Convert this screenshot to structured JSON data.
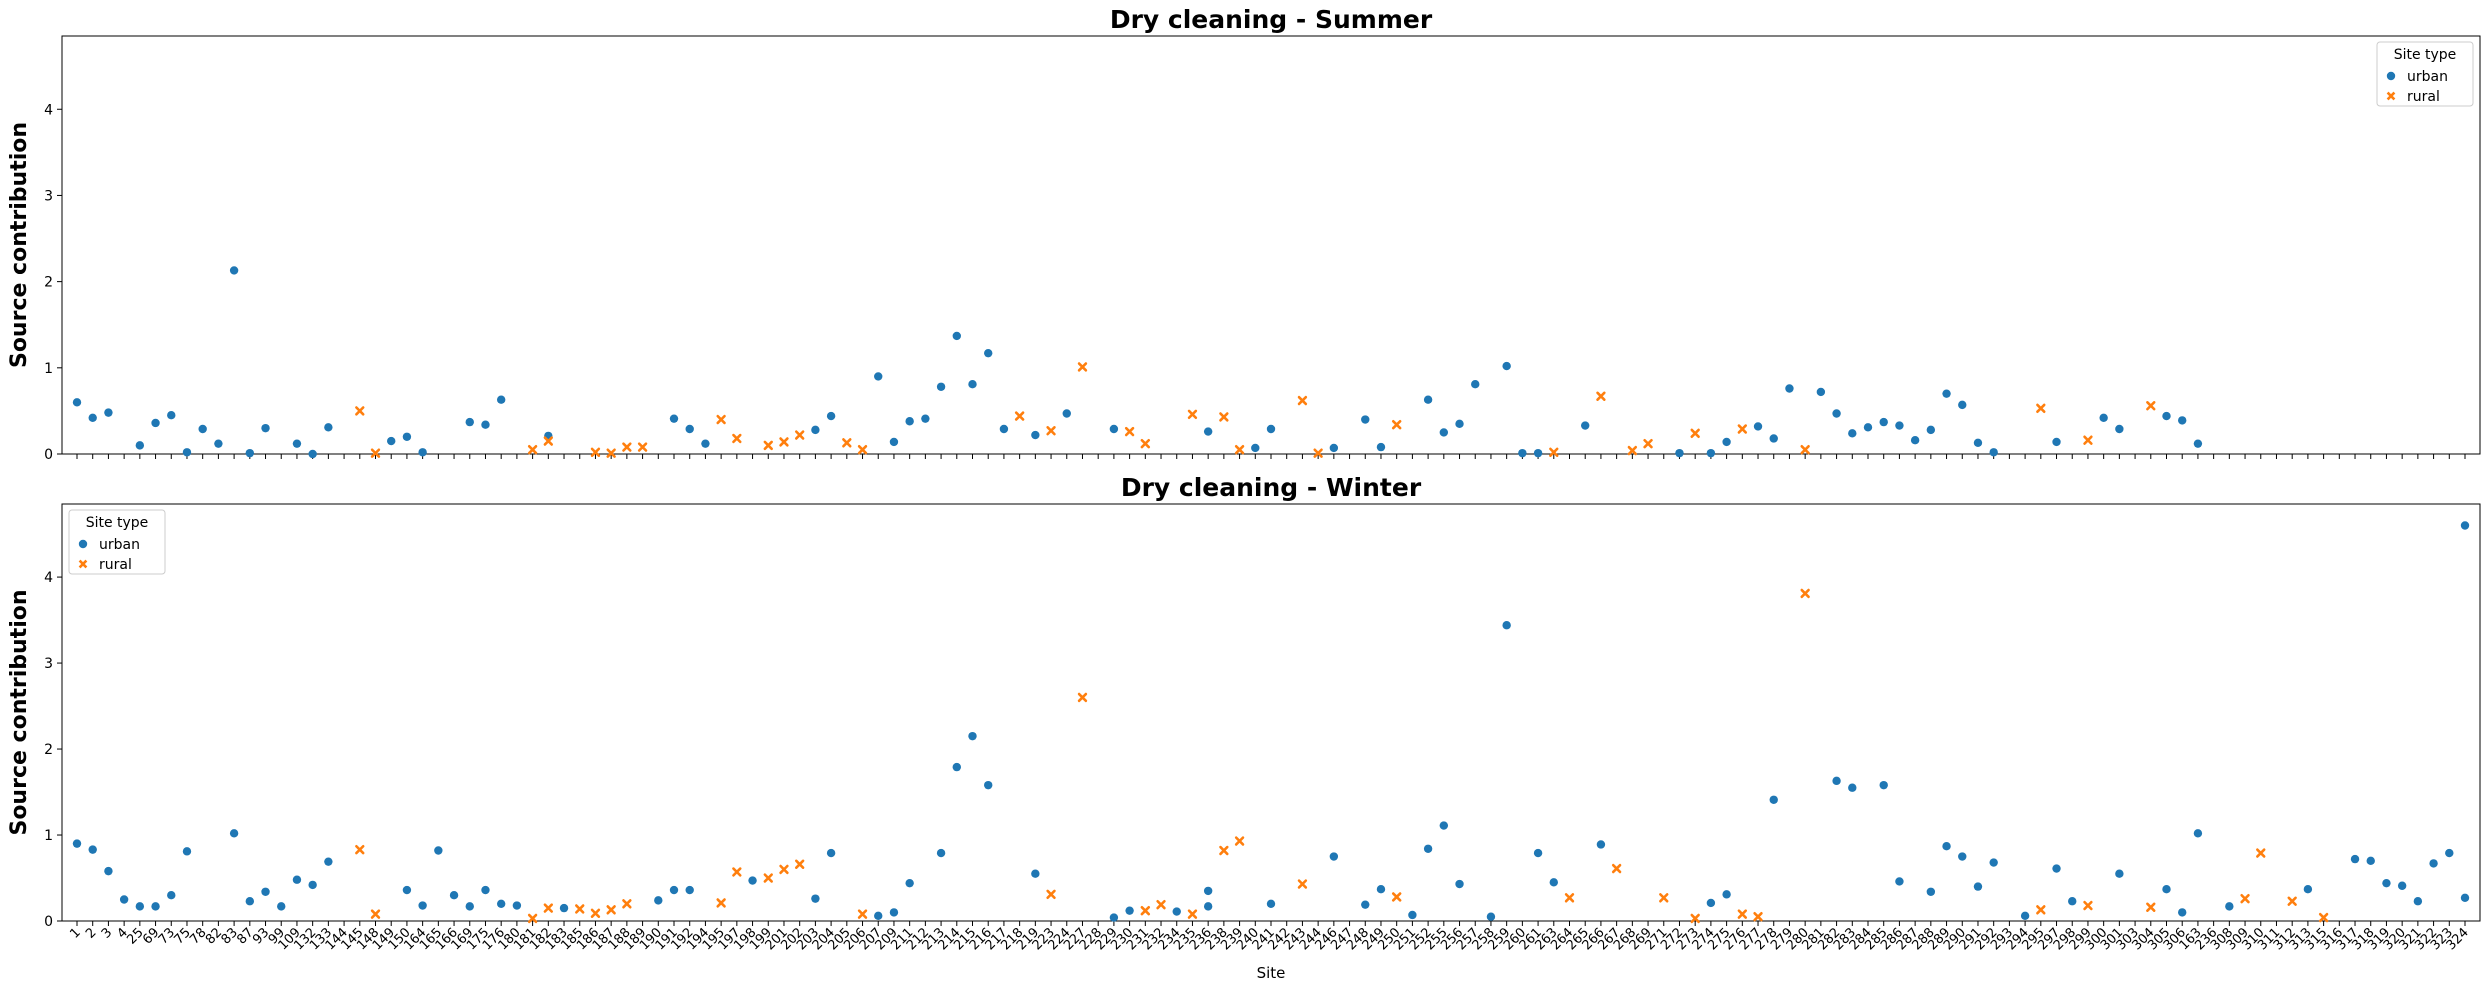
{
  "chart_data": [
    {
      "type": "scatter",
      "title": "Dry cleaning - Summer",
      "xlabel": "",
      "ylabel": "Source contribution",
      "ylim": [
        0,
        4.85
      ],
      "yticks": [
        0,
        1,
        2,
        3,
        4
      ],
      "legend": {
        "title": "Site type",
        "placement": "top-right"
      },
      "grid": false,
      "series": [
        {
          "name": "urban",
          "color": "#1f77b4",
          "marker": "circle",
          "points": [
            [
              "1",
              0.6
            ],
            [
              "2",
              0.42
            ],
            [
              "3",
              0.48
            ],
            [
              "25",
              0.1
            ],
            [
              "69",
              0.36
            ],
            [
              "73",
              0.45
            ],
            [
              "75",
              0.02
            ],
            [
              "78",
              0.29
            ],
            [
              "82",
              0.12
            ],
            [
              "83",
              2.13
            ],
            [
              "87",
              0.01
            ],
            [
              "93",
              0.3
            ],
            [
              "109",
              0.12
            ],
            [
              "132",
              0.0
            ],
            [
              "133",
              0.31
            ],
            [
              "149",
              0.15
            ],
            [
              "150",
              0.2
            ],
            [
              "164",
              0.02
            ],
            [
              "169",
              0.37
            ],
            [
              "175",
              0.34
            ],
            [
              "176",
              0.63
            ],
            [
              "182",
              0.21
            ],
            [
              "191",
              0.41
            ],
            [
              "192",
              0.29
            ],
            [
              "194",
              0.12
            ],
            [
              "203",
              0.28
            ],
            [
              "204",
              0.44
            ],
            [
              "207",
              0.9
            ],
            [
              "209",
              0.14
            ],
            [
              "211",
              0.38
            ],
            [
              "212",
              0.41
            ],
            [
              "213",
              0.78
            ],
            [
              "214",
              1.37
            ],
            [
              "215",
              0.81
            ],
            [
              "216",
              1.17
            ],
            [
              "217",
              0.29
            ],
            [
              "219",
              0.22
            ],
            [
              "224",
              0.47
            ],
            [
              "229",
              0.29
            ],
            [
              "236",
              0.26
            ],
            [
              "240",
              0.07
            ],
            [
              "241",
              0.29
            ],
            [
              "246",
              0.07
            ],
            [
              "248",
              0.4
            ],
            [
              "249",
              0.08
            ],
            [
              "252",
              0.63
            ],
            [
              "255",
              0.25
            ],
            [
              "256",
              0.35
            ],
            [
              "257",
              0.81
            ],
            [
              "259",
              1.02
            ],
            [
              "260",
              0.01
            ],
            [
              "261",
              0.01
            ],
            [
              "265",
              0.33
            ],
            [
              "272",
              0.01
            ],
            [
              "274",
              0.01
            ],
            [
              "275",
              0.14
            ],
            [
              "277",
              0.32
            ],
            [
              "278",
              0.18
            ],
            [
              "279",
              0.76
            ],
            [
              "281",
              0.72
            ],
            [
              "282",
              0.47
            ],
            [
              "283",
              0.24
            ],
            [
              "284",
              0.31
            ],
            [
              "285",
              0.37
            ],
            [
              "286",
              0.33
            ],
            [
              "287",
              0.16
            ],
            [
              "288",
              0.28
            ],
            [
              "289",
              0.7
            ],
            [
              "290",
              0.57
            ],
            [
              "291",
              0.13
            ],
            [
              "292",
              0.02
            ],
            [
              "297",
              0.14
            ],
            [
              "300",
              0.42
            ],
            [
              "301",
              0.29
            ],
            [
              "305",
              0.44
            ],
            [
              "306",
              0.39
            ],
            [
              "163",
              0.12
            ]
          ]
        },
        {
          "name": "rural",
          "color": "#ff7f0e",
          "marker": "x",
          "points": [
            [
              "145",
              0.5
            ],
            [
              "148",
              0.01
            ],
            [
              "181",
              0.05
            ],
            [
              "182",
              0.15
            ],
            [
              "186",
              0.02
            ],
            [
              "187",
              0.01
            ],
            [
              "188",
              0.08
            ],
            [
              "189",
              0.08
            ],
            [
              "195",
              0.4
            ],
            [
              "197",
              0.18
            ],
            [
              "199",
              0.1
            ],
            [
              "201",
              0.14
            ],
            [
              "202",
              0.22
            ],
            [
              "205",
              0.13
            ],
            [
              "206",
              0.05
            ],
            [
              "218",
              0.44
            ],
            [
              "223",
              0.27
            ],
            [
              "227",
              1.01
            ],
            [
              "230",
              0.26
            ],
            [
              "231",
              0.12
            ],
            [
              "235",
              0.46
            ],
            [
              "238",
              0.43
            ],
            [
              "239",
              0.05
            ],
            [
              "243",
              0.62
            ],
            [
              "244",
              0.01
            ],
            [
              "250",
              0.34
            ],
            [
              "263",
              0.02
            ],
            [
              "266",
              0.67
            ],
            [
              "268",
              0.04
            ],
            [
              "269",
              0.12
            ],
            [
              "273",
              0.24
            ],
            [
              "276",
              0.29
            ],
            [
              "280",
              0.05
            ],
            [
              "295",
              0.53
            ],
            [
              "299",
              0.16
            ],
            [
              "304",
              0.56
            ]
          ]
        }
      ]
    },
    {
      "type": "scatter",
      "title": "Dry cleaning - Winter",
      "xlabel": "Site",
      "ylabel": "Source contribution",
      "ylim": [
        0,
        4.85
      ],
      "yticks": [
        0,
        1,
        2,
        3,
        4
      ],
      "legend": {
        "title": "Site type",
        "placement": "top-left"
      },
      "grid": false,
      "series": [
        {
          "name": "urban",
          "color": "#1f77b4",
          "marker": "circle",
          "points": [
            [
              "1",
              0.9
            ],
            [
              "2",
              0.83
            ],
            [
              "3",
              0.58
            ],
            [
              "4",
              0.25
            ],
            [
              "25",
              0.17
            ],
            [
              "69",
              0.17
            ],
            [
              "73",
              0.3
            ],
            [
              "75",
              0.81
            ],
            [
              "83",
              1.02
            ],
            [
              "87",
              0.23
            ],
            [
              "93",
              0.34
            ],
            [
              "99",
              0.17
            ],
            [
              "109",
              0.48
            ],
            [
              "132",
              0.42
            ],
            [
              "133",
              0.69
            ],
            [
              "150",
              0.36
            ],
            [
              "164",
              0.18
            ],
            [
              "165",
              0.82
            ],
            [
              "166",
              0.3
            ],
            [
              "169",
              0.17
            ],
            [
              "175",
              0.36
            ],
            [
              "176",
              0.2
            ],
            [
              "180",
              0.18
            ],
            [
              "183",
              0.15
            ],
            [
              "190",
              0.24
            ],
            [
              "191",
              0.36
            ],
            [
              "192",
              0.36
            ],
            [
              "198",
              0.47
            ],
            [
              "203",
              0.26
            ],
            [
              "204",
              0.79
            ],
            [
              "207",
              0.06
            ],
            [
              "209",
              0.1
            ],
            [
              "211",
              0.44
            ],
            [
              "213",
              0.79
            ],
            [
              "214",
              1.79
            ],
            [
              "215",
              2.15
            ],
            [
              "216",
              1.58
            ],
            [
              "219",
              0.55
            ],
            [
              "229",
              0.04
            ],
            [
              "230",
              0.12
            ],
            [
              "234",
              0.11
            ],
            [
              "236",
              0.35
            ],
            [
              "241",
              0.2
            ],
            [
              "246",
              0.75
            ],
            [
              "248",
              0.19
            ],
            [
              "249",
              0.37
            ],
            [
              "251",
              0.07
            ],
            [
              "252",
              0.84
            ],
            [
              "255",
              1.11
            ],
            [
              "256",
              0.43
            ],
            [
              "258",
              0.05
            ],
            [
              "259",
              3.44
            ],
            [
              "261",
              0.79
            ],
            [
              "263",
              0.45
            ],
            [
              "266",
              0.89
            ],
            [
              "274",
              0.21
            ],
            [
              "275",
              0.31
            ],
            [
              "278",
              1.41
            ],
            [
              "282",
              1.63
            ],
            [
              "283",
              1.55
            ],
            [
              "285",
              1.58
            ],
            [
              "286",
              0.46
            ],
            [
              "288",
              0.34
            ],
            [
              "289",
              0.87
            ],
            [
              "290",
              0.75
            ],
            [
              "291",
              0.4
            ],
            [
              "292",
              0.68
            ],
            [
              "294",
              0.06
            ],
            [
              "297",
              0.61
            ],
            [
              "298",
              0.23
            ],
            [
              "301",
              0.55
            ],
            [
              "305",
              0.37
            ],
            [
              "306",
              0.1
            ],
            [
              "163",
              1.02
            ],
            [
              "236",
              0.17
            ],
            [
              "308",
              0.17
            ],
            [
              "313",
              0.37
            ],
            [
              "317",
              0.72
            ],
            [
              "318",
              0.7
            ],
            [
              "319",
              0.44
            ],
            [
              "320",
              0.41
            ],
            [
              "321",
              0.23
            ],
            [
              "322",
              0.67
            ],
            [
              "323",
              0.79
            ],
            [
              "324",
              0.27
            ],
            [
              "324b",
              4.6
            ]
          ]
        },
        {
          "name": "rural",
          "color": "#ff7f0e",
          "marker": "x",
          "points": [
            [
              "145",
              0.83
            ],
            [
              "148",
              0.08
            ],
            [
              "181",
              0.03
            ],
            [
              "182",
              0.15
            ],
            [
              "185",
              0.14
            ],
            [
              "186",
              0.09
            ],
            [
              "187",
              0.13
            ],
            [
              "188",
              0.2
            ],
            [
              "195",
              0.21
            ],
            [
              "197",
              0.57
            ],
            [
              "199",
              0.5
            ],
            [
              "201",
              0.6
            ],
            [
              "202",
              0.66
            ],
            [
              "206",
              0.08
            ],
            [
              "223",
              0.31
            ],
            [
              "227",
              2.6
            ],
            [
              "231",
              0.12
            ],
            [
              "232",
              0.19
            ],
            [
              "235",
              0.08
            ],
            [
              "238",
              0.82
            ],
            [
              "239",
              0.93
            ],
            [
              "243",
              0.43
            ],
            [
              "250",
              0.28
            ],
            [
              "264",
              0.27
            ],
            [
              "267",
              0.61
            ],
            [
              "271",
              0.27
            ],
            [
              "273",
              0.03
            ],
            [
              "276",
              0.08
            ],
            [
              "277",
              0.05
            ],
            [
              "280",
              3.81
            ],
            [
              "295",
              0.13
            ],
            [
              "299",
              0.18
            ],
            [
              "309",
              0.26
            ],
            [
              "310",
              0.79
            ],
            [
              "312",
              0.23
            ],
            [
              "315",
              0.04
            ],
            [
              "304",
              0.16
            ]
          ]
        }
      ]
    }
  ],
  "x_categories": [
    "1",
    "2",
    "3",
    "4",
    "25",
    "69",
    "73",
    "75",
    "78",
    "82",
    "83",
    "87",
    "93",
    "99",
    "109",
    "132",
    "133",
    "144",
    "145",
    "148",
    "149",
    "150",
    "164",
    "165",
    "166",
    "169",
    "175",
    "176",
    "180",
    "181",
    "182",
    "183",
    "185",
    "186",
    "187",
    "188",
    "189",
    "190",
    "191",
    "192",
    "194",
    "195",
    "197",
    "198",
    "199",
    "201",
    "202",
    "203",
    "204",
    "205",
    "206",
    "207",
    "209",
    "211",
    "212",
    "213",
    "214",
    "215",
    "216",
    "217",
    "218",
    "219",
    "223",
    "224",
    "227",
    "228",
    "229",
    "230",
    "231",
    "232",
    "234",
    "235",
    "236",
    "238",
    "239",
    "240",
    "241",
    "242",
    "243",
    "244",
    "246",
    "247",
    "248",
    "249",
    "250",
    "251",
    "252",
    "255",
    "256",
    "257",
    "258",
    "259",
    "260",
    "261",
    "263",
    "264",
    "265",
    "266",
    "267",
    "268",
    "269",
    "271",
    "272",
    "273",
    "274",
    "275",
    "276",
    "277",
    "278",
    "279",
    "280",
    "281",
    "282",
    "283",
    "284",
    "285",
    "286",
    "287",
    "288",
    "289",
    "290",
    "291",
    "292",
    "293",
    "294",
    "295",
    "297",
    "298",
    "299",
    "300",
    "301",
    "303",
    "304",
    "305",
    "306",
    "163",
    "236",
    "308",
    "309",
    "310",
    "311",
    "312",
    "313",
    "315",
    "316",
    "317",
    "318",
    "319",
    "320",
    "321",
    "322",
    "323",
    "324"
  ]
}
